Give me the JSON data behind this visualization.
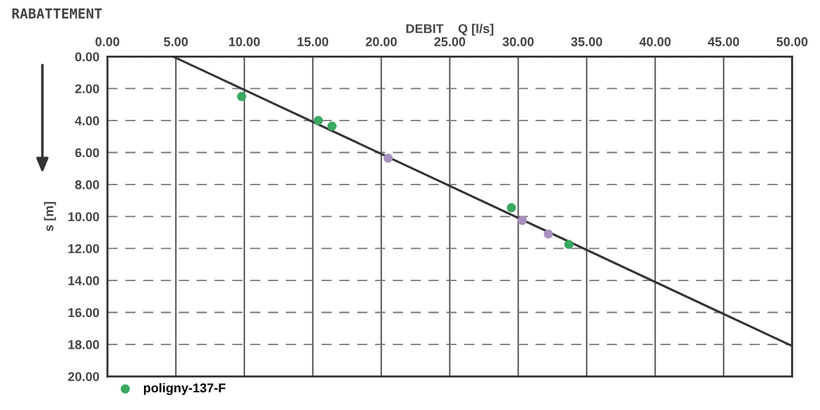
{
  "chart_data": {
    "type": "scatter",
    "title": "RABATTEMENT",
    "xlabel": "DEBIT    Q [l/s]",
    "ylabel": "s [m]",
    "xlim": [
      0,
      50
    ],
    "ylim": [
      20,
      0
    ],
    "xticks": [
      {
        "value": 0,
        "label": "0.00"
      },
      {
        "value": 5,
        "label": "5.00"
      },
      {
        "value": 10,
        "label": "10.00"
      },
      {
        "value": 15,
        "label": "15.00"
      },
      {
        "value": 20,
        "label": "20.00"
      },
      {
        "value": 25,
        "label": "25.00"
      },
      {
        "value": 30,
        "label": "30.00"
      },
      {
        "value": 35,
        "label": "35.00"
      },
      {
        "value": 40,
        "label": "40.00"
      },
      {
        "value": 45,
        "label": "45.00"
      },
      {
        "value": 50,
        "label": "50.00"
      }
    ],
    "yticks": [
      {
        "value": 0,
        "label": "0.00"
      },
      {
        "value": 2,
        "label": "2.00"
      },
      {
        "value": 4,
        "label": "4.00"
      },
      {
        "value": 6,
        "label": "6.00"
      },
      {
        "value": 8,
        "label": "8.00"
      },
      {
        "value": 10,
        "label": "10.00"
      },
      {
        "value": 12,
        "label": "12.00"
      },
      {
        "value": 14,
        "label": "14.00"
      },
      {
        "value": 16,
        "label": "16.00"
      },
      {
        "value": 18,
        "label": "18.00"
      },
      {
        "value": 20,
        "label": "20.00"
      }
    ],
    "grid": true,
    "legend": "bottom left",
    "series": [
      {
        "type": "line",
        "color": "#333333",
        "marker": "none",
        "x": [
          4.8,
          50
        ],
        "values": [
          0,
          18.1
        ]
      },
      {
        "name": "poligny-137-F",
        "color": "#3aa860",
        "marker": "circle",
        "x": [
          9.8,
          15.4,
          16.4,
          29.5,
          33.7
        ],
        "values": [
          2.5,
          4.0,
          4.35,
          9.45,
          11.75
        ]
      },
      {
        "color": "#a890c0",
        "marker": "circle",
        "x": [
          20.5,
          30.3,
          32.2
        ],
        "values": [
          6.35,
          10.25,
          11.1
        ]
      }
    ]
  }
}
